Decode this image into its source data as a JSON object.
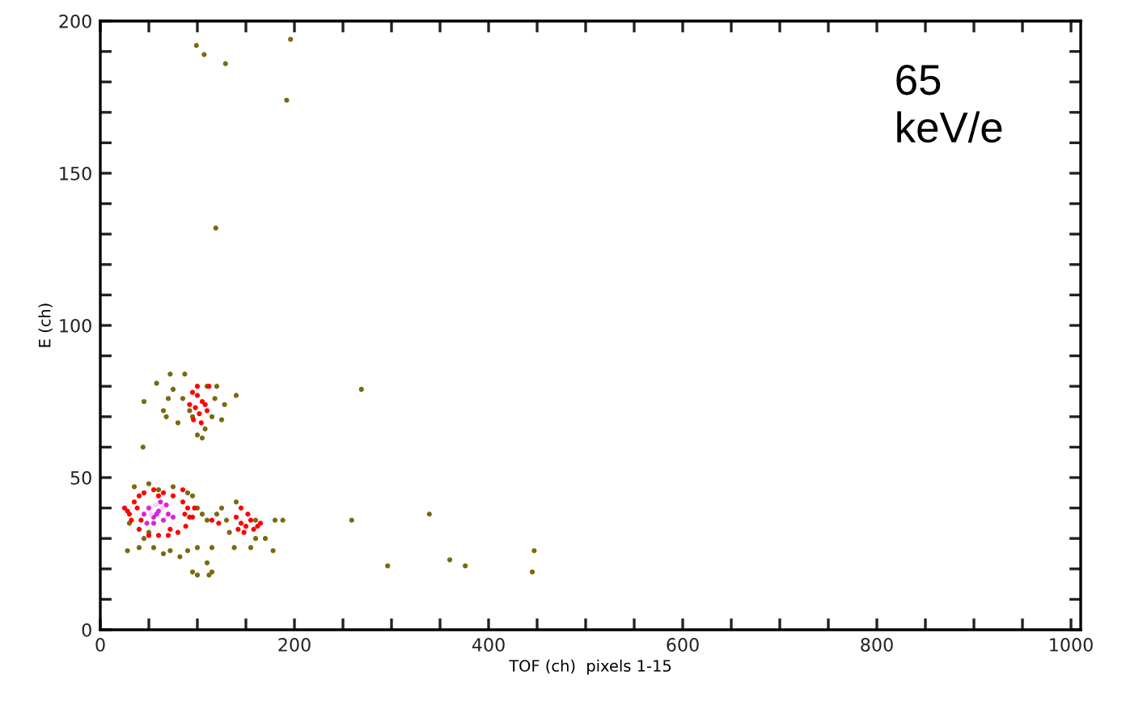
{
  "chart_data": {
    "type": "scatter",
    "xlabel": "TOF (ch)  pixels 1-15",
    "ylabel": "E (ch)",
    "annotations": [
      "65\nkeV/e"
    ],
    "xlim": [
      0,
      1010
    ],
    "ylim": [
      0,
      200
    ],
    "xticks": [
      0,
      {
        "value": 50,
        "label": null
      },
      {
        "value": 100,
        "label": null
      },
      {
        "value": 150,
        "label": null
      },
      200,
      {
        "value": 250,
        "label": null
      },
      {
        "value": 300,
        "label": null
      },
      {
        "value": 350,
        "label": null
      },
      400,
      {
        "value": 450,
        "label": null
      },
      {
        "value": 500,
        "label": null
      },
      {
        "value": 550,
        "label": null
      },
      600,
      {
        "value": 650,
        "label": null
      },
      {
        "value": 700,
        "label": null
      },
      {
        "value": 750,
        "label": null
      },
      800,
      {
        "value": 850,
        "label": null
      },
      {
        "value": 900,
        "label": null
      },
      {
        "value": 950,
        "label": null
      },
      1000
    ],
    "yticks": [
      0,
      {
        "value": 10,
        "label": null
      },
      {
        "value": 20,
        "label": null
      },
      {
        "value": 30,
        "label": null
      },
      {
        "value": 40,
        "label": null
      },
      50,
      {
        "value": 60,
        "label": null
      },
      {
        "value": 70,
        "label": null
      },
      {
        "value": 80,
        "label": null
      },
      {
        "value": 90,
        "label": null
      },
      100,
      {
        "value": 110,
        "label": null
      },
      {
        "value": 120,
        "label": null
      },
      {
        "value": 130,
        "label": null
      },
      {
        "value": 140,
        "label": null
      },
      150,
      {
        "value": 160,
        "label": null
      },
      {
        "value": 170,
        "label": null
      },
      {
        "value": 180,
        "label": null
      },
      {
        "value": 190,
        "label": null
      },
      200
    ],
    "grid": false,
    "legend": false,
    "marker": "circle",
    "series": [
      {
        "color": "#7a6a10",
        "x": [
          99,
          107,
          129,
          196,
          192,
          119,
          269,
          259,
          339,
          296,
          360,
          376,
          447,
          445,
          44,
          72,
          87,
          58,
          75,
          110,
          120,
          140,
          45,
          65,
          68,
          80,
          92,
          95,
          100,
          105,
          108,
          115,
          125,
          128,
          85,
          70,
          118,
          35,
          50,
          60,
          75,
          90,
          95,
          100,
          105,
          110,
          120,
          125,
          130,
          133,
          140,
          160,
          170,
          180,
          188,
          28,
          40,
          55,
          65,
          72,
          82,
          90,
          100,
          110,
          115,
          138,
          155,
          160,
          178,
          100,
          95,
          115,
          112,
          45,
          30,
          50
        ],
        "values": [
          192,
          189,
          186,
          194,
          174,
          132,
          79,
          36,
          38,
          21,
          23,
          21,
          26,
          19,
          60,
          84,
          84,
          81,
          79,
          80,
          80,
          77,
          75,
          72,
          70,
          68,
          72,
          70,
          64,
          63,
          66,
          70,
          69,
          74,
          76,
          76,
          76,
          47,
          48,
          46,
          47,
          45,
          44,
          40,
          38,
          36,
          38,
          40,
          36,
          32,
          42,
          36,
          30,
          36,
          36,
          26,
          27,
          27,
          25,
          26,
          24,
          26,
          27,
          22,
          27,
          27,
          27,
          30,
          26,
          18,
          19,
          19,
          18,
          30,
          35,
          32
        ]
      },
      {
        "color": "#ff0000",
        "x": [
          95,
          100,
          105,
          98,
          102,
          108,
          112,
          92,
          100,
          110,
          96,
          104,
          25,
          30,
          35,
          40,
          45,
          55,
          65,
          75,
          85,
          90,
          92,
          88,
          80,
          70,
          60,
          50,
          40,
          32,
          38,
          95,
          85,
          28,
          42,
          87,
          97,
          60,
          72,
          115,
          122,
          140,
          145,
          150,
          155,
          148,
          158,
          162,
          142,
          152,
          165,
          145
        ],
        "values": [
          78,
          77,
          75,
          73,
          71,
          74,
          80,
          74,
          80,
          72,
          69,
          68,
          40,
          38,
          42,
          44,
          45,
          46,
          45,
          44,
          42,
          40,
          37,
          34,
          32,
          31,
          31,
          31,
          33,
          36,
          40,
          37,
          46,
          39,
          36,
          38,
          40,
          44,
          33,
          36,
          35,
          37,
          35,
          34,
          36,
          32,
          33,
          34,
          33,
          38,
          35,
          40
        ]
      },
      {
        "color": "#dd22dd",
        "x": [
          45,
          50,
          55,
          60,
          65,
          70,
          55,
          62,
          48,
          68,
          75,
          58
        ],
        "values": [
          38,
          40,
          37,
          39,
          36,
          38,
          35,
          42,
          35,
          41,
          37,
          38
        ]
      },
      {
        "color": "#f4d0ff",
        "x": [
          52,
          64,
          57
        ],
        "values": [
          38,
          40,
          41
        ]
      }
    ]
  }
}
